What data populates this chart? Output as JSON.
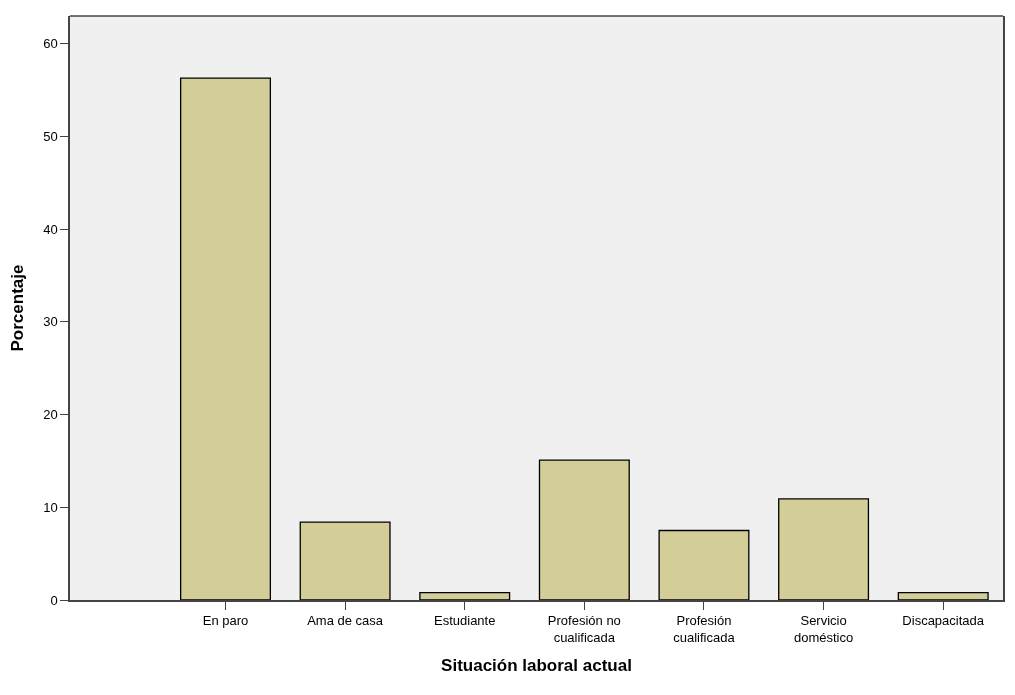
{
  "chart_data": {
    "type": "bar",
    "xlabel": "Situación laboral actual",
    "ylabel": "Porcentaje",
    "categories": [
      "En paro",
      "Ama de casa",
      "Estudiante",
      "Profesión no\ncualificada",
      "Profesión\ncualificada",
      "Servicio\ndoméstico",
      "Discapacitada"
    ],
    "values": [
      56.3,
      8.4,
      0.8,
      15.1,
      7.5,
      10.9,
      0.8
    ],
    "color": "#d3ce97",
    "ylim": [
      0,
      63
    ],
    "yticks": [
      0,
      10,
      20,
      30,
      40,
      50,
      60
    ],
    "grid": false
  }
}
